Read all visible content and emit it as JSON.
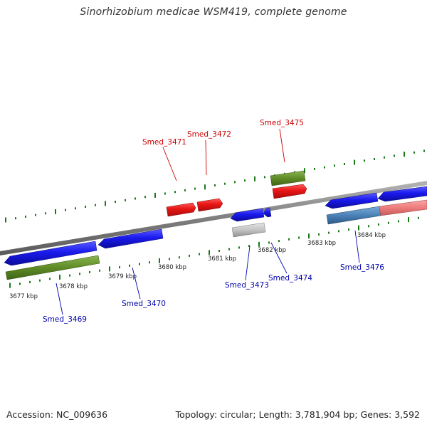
{
  "title": "Sinorhizobium medicae WSM419, complete genome",
  "footer": {
    "accession_text": "Accession: NC_009636",
    "topology_text": "Topology: circular; Length: 3,781,904 bp; Genes: 3,592"
  },
  "colors": {
    "cds": "#1a1aee",
    "rna": "#e81515",
    "green_feature": "#5f8c25",
    "pseudo_gray": "#c4c4c4",
    "steel_blue": "#4a82b8",
    "salmon": "#ee7c7c",
    "tick": "#1a7a1a",
    "label_blue": "#0000aa",
    "label_red": "#cc0000",
    "backbone": "#8a8a8a"
  },
  "tick_labels": [
    "3677 kbp",
    "3678 kbp",
    "3679 kbp",
    "3680 kbp",
    "3681 kbp",
    "3682 kbp",
    "3683 kbp",
    "3684 kbp"
  ],
  "gene_labels": {
    "smed_3469": "Smed_3469",
    "smed_3470": "Smed_3470",
    "smed_3471": "Smed_3471",
    "smed_3472": "Smed_3472",
    "smed_3473": "Smed_3473",
    "smed_3474": "Smed_3474",
    "smed_3475": "Smed_3475",
    "smed_3476": "Smed_3476"
  }
}
